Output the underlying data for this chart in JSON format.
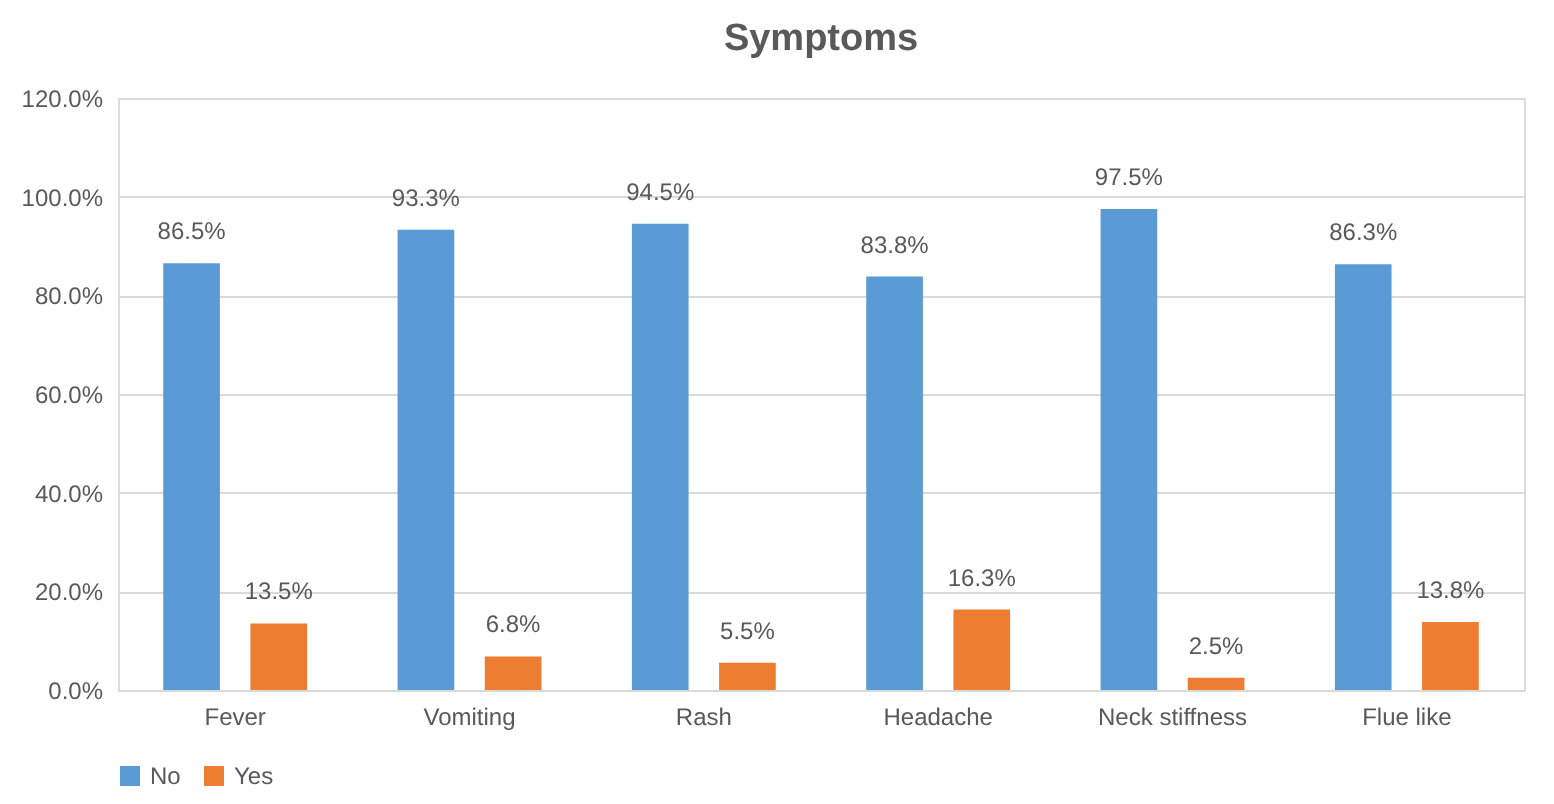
{
  "chart_data": {
    "type": "bar",
    "title": "Symptoms",
    "categories": [
      "Fever",
      "Vomiting",
      "Rash",
      "Headache",
      "Neck stiffness",
      "Flue like"
    ],
    "series": [
      {
        "name": "No",
        "color": "#5b9bd5",
        "values": [
          86.5,
          93.3,
          94.5,
          83.8,
          97.5,
          86.3
        ],
        "value_labels": [
          "86.5%",
          "93.3%",
          "94.5%",
          "83.8%",
          "97.5%",
          "86.3%"
        ]
      },
      {
        "name": "Yes",
        "color": "#ed7d31",
        "values": [
          13.5,
          6.8,
          5.5,
          16.3,
          2.5,
          13.8
        ],
        "value_labels": [
          "13.5%",
          "6.8%",
          "5.5%",
          "16.3%",
          "2.5%",
          "13.8%"
        ]
      }
    ],
    "ylim": [
      0,
      120
    ],
    "yticks": [
      {
        "value": 0,
        "label": "0.0%"
      },
      {
        "value": 20,
        "label": "20.0%"
      },
      {
        "value": 40,
        "label": "40.0%"
      },
      {
        "value": 60,
        "label": "60.0%"
      },
      {
        "value": 80,
        "label": "80.0%"
      },
      {
        "value": 100,
        "label": "100.0%"
      },
      {
        "value": 120,
        "label": "120.0%"
      }
    ],
    "grid": "y",
    "legend": "bottom"
  }
}
